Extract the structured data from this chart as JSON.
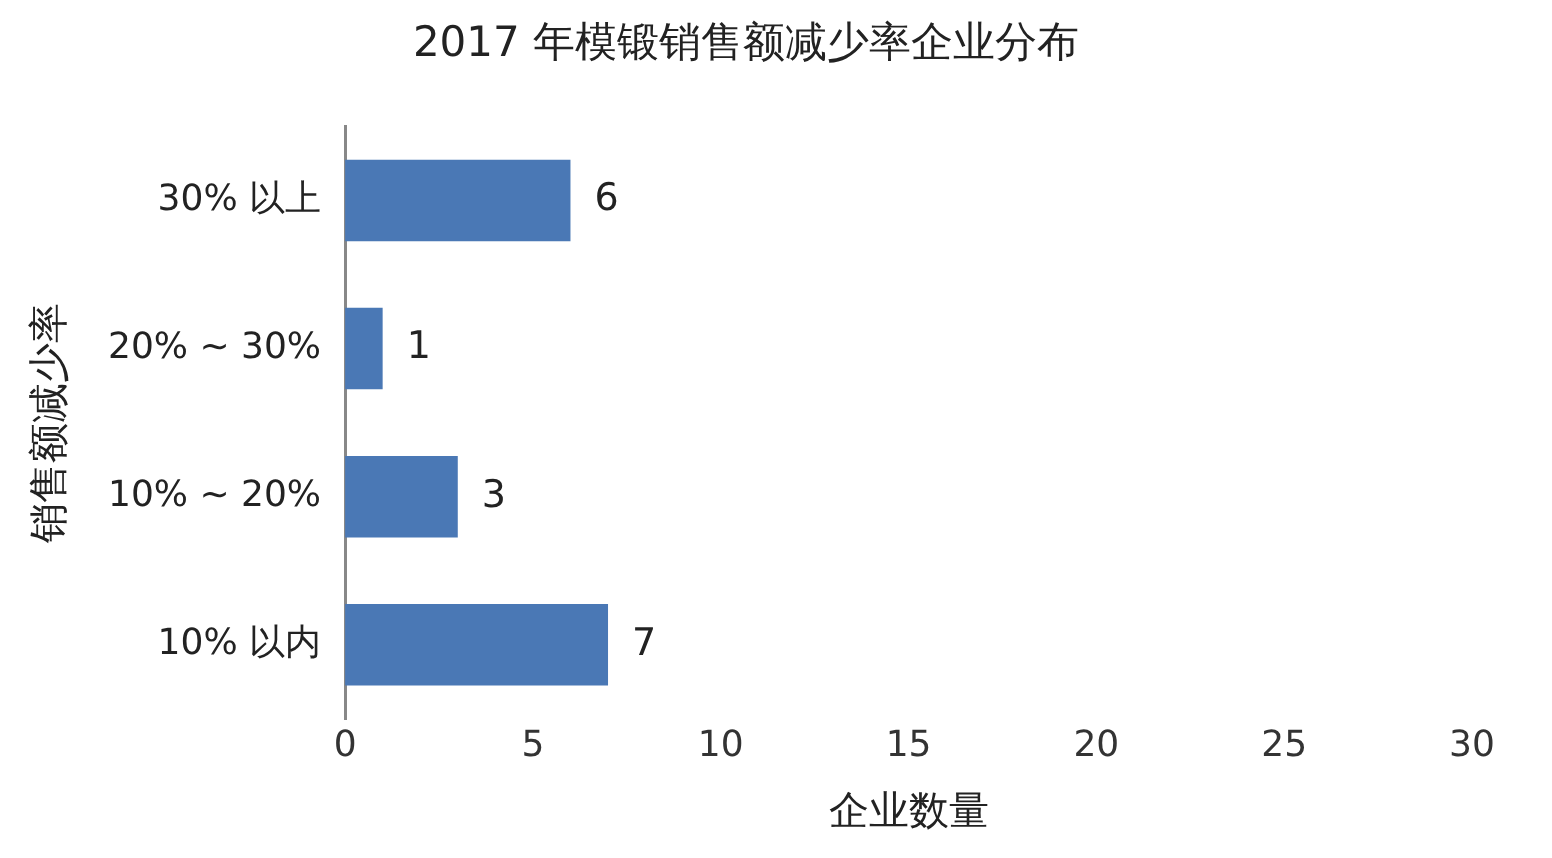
{
  "chart_data": {
    "type": "bar",
    "orientation": "horizontal",
    "title": "2017 年模锻销售额减少率企业分布",
    "xlabel": "企业数量",
    "ylabel": "销售额减少率",
    "categories": [
      "30% 以上",
      "20% ~ 30%",
      "10% ~ 20%",
      "10% 以内"
    ],
    "values": [
      6,
      1,
      3,
      7
    ],
    "color": "#4a78b5",
    "xlim": [
      0,
      30
    ],
    "xticks": [
      0,
      5,
      10,
      15,
      20,
      25,
      30
    ],
    "grid": false,
    "legend": false,
    "data_labels": true
  }
}
